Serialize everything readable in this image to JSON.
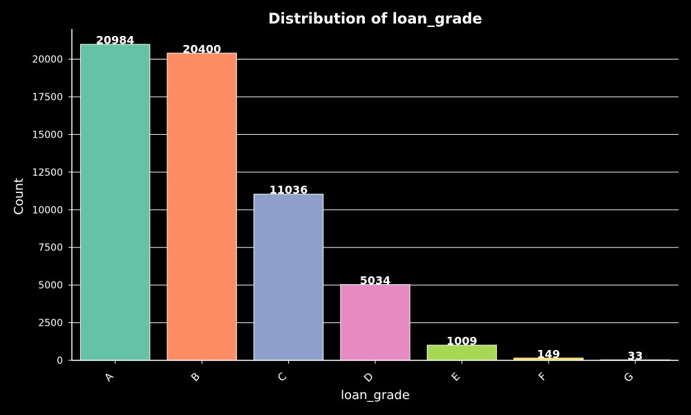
{
  "chart_data": {
    "type": "bar",
    "title": "Distribution of loan_grade",
    "xlabel": "loan_grade",
    "ylabel": "Count",
    "categories": [
      "A",
      "B",
      "C",
      "D",
      "E",
      "F",
      "G"
    ],
    "values": [
      20984,
      20400,
      11036,
      5034,
      1009,
      149,
      33
    ],
    "data_labels": [
      "20984",
      "20400",
      "11036",
      "5034",
      "1009",
      "149",
      "33"
    ],
    "colors": [
      "#66c2a5",
      "#fc8d62",
      "#8da0cb",
      "#e78ac3",
      "#a6d854",
      "#ffd92f",
      "#e5c494"
    ],
    "ylim": [
      0,
      22000
    ],
    "y_ticks": [
      0,
      2500,
      5000,
      7500,
      10000,
      12500,
      15000,
      17500,
      20000
    ],
    "y_tick_labels": [
      "0",
      "2500",
      "5000",
      "7500",
      "10000",
      "12500",
      "15000",
      "17500",
      "20000"
    ],
    "grid": "horizontal",
    "background": "#000000",
    "text_color": "#ffffff"
  }
}
